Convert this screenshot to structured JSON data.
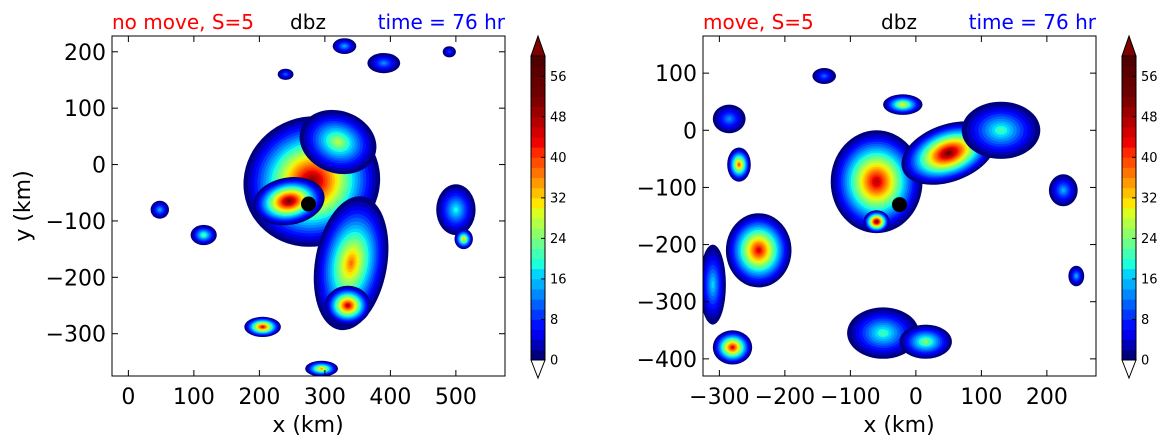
{
  "chart_data": [
    {
      "type": "heatmap",
      "title_left": "no move, S=5",
      "title_center": "dbz",
      "title_right": "time = 76 hr",
      "title_left_color": "#ff0000",
      "title_center_color": "#000000",
      "title_right_color": "#0000ff",
      "xlabel": "x (km)",
      "ylabel": "y (km)",
      "xlim": [
        -25,
        575
      ],
      "ylim": [
        -375,
        228
      ],
      "xticks": [
        0,
        100,
        200,
        300,
        400,
        500
      ],
      "xtick_labels": [
        "0",
        "100",
        "200",
        "300",
        "400",
        "500"
      ],
      "yticks": [
        200,
        100,
        0,
        -100,
        -200,
        -300
      ],
      "ytick_labels": [
        "200",
        "100",
        "0",
        "−100",
        "−200",
        "−300"
      ],
      "center_marker": {
        "x": 275,
        "y": -70
      },
      "cells": [
        {
          "x": 280,
          "y": -30,
          "rx": 105,
          "ry": 115,
          "rot": -20,
          "peak": 50
        },
        {
          "x": 245,
          "y": -65,
          "rx": 55,
          "ry": 42,
          "rot": -10,
          "peak": 52
        },
        {
          "x": 320,
          "y": 40,
          "rx": 60,
          "ry": 55,
          "rot": 20,
          "peak": 26
        },
        {
          "x": 340,
          "y": -175,
          "rx": 55,
          "ry": 120,
          "rot": 10,
          "peak": 36
        },
        {
          "x": 335,
          "y": -250,
          "rx": 35,
          "ry": 35,
          "rot": 0,
          "peak": 46
        },
        {
          "x": 205,
          "y": -288,
          "rx": 28,
          "ry": 18,
          "rot": 0,
          "peak": 44
        },
        {
          "x": 295,
          "y": -362,
          "rx": 25,
          "ry": 14,
          "rot": 0,
          "peak": 34
        },
        {
          "x": 115,
          "y": -125,
          "rx": 20,
          "ry": 18,
          "rot": 0,
          "peak": 22
        },
        {
          "x": 48,
          "y": -80,
          "rx": 14,
          "ry": 16,
          "rot": 0,
          "peak": 14
        },
        {
          "x": 500,
          "y": -80,
          "rx": 30,
          "ry": 45,
          "rot": 0,
          "peak": 18
        },
        {
          "x": 512,
          "y": -132,
          "rx": 14,
          "ry": 18,
          "rot": 0,
          "peak": 32
        },
        {
          "x": 390,
          "y": 180,
          "rx": 25,
          "ry": 18,
          "rot": 0,
          "peak": 12
        },
        {
          "x": 240,
          "y": 160,
          "rx": 12,
          "ry": 10,
          "rot": 0,
          "peak": 10
        },
        {
          "x": 490,
          "y": 200,
          "rx": 10,
          "ry": 10,
          "rot": 0,
          "peak": 8
        },
        {
          "x": 330,
          "y": 210,
          "rx": 18,
          "ry": 14,
          "rot": 0,
          "peak": 14
        }
      ]
    },
    {
      "type": "heatmap",
      "title_left": "move, S=5",
      "title_center": "dbz",
      "title_right": "time = 76 hr",
      "title_left_color": "#ff0000",
      "title_center_color": "#000000",
      "title_right_color": "#0000ff",
      "xlabel": "x (km)",
      "ylabel": "",
      "xlim": [
        -325,
        275
      ],
      "ylim": [
        -430,
        165
      ],
      "xticks": [
        -300,
        -200,
        -100,
        0,
        100,
        200
      ],
      "xtick_labels": [
        "−300",
        "−200",
        "−100",
        "0",
        "100",
        "200"
      ],
      "yticks": [
        100,
        0,
        -100,
        -200,
        -300,
        -400
      ],
      "ytick_labels": [
        "100",
        "0",
        "−100",
        "−200",
        "−300",
        "−400"
      ],
      "center_marker": {
        "x": -25,
        "y": -130
      },
      "cells": [
        {
          "x": -60,
          "y": -90,
          "rx": 70,
          "ry": 90,
          "rot": 0,
          "peak": 46
        },
        {
          "x": -60,
          "y": -160,
          "rx": 20,
          "ry": 20,
          "rot": 0,
          "peak": 52
        },
        {
          "x": 50,
          "y": -40,
          "rx": 75,
          "ry": 50,
          "rot": -20,
          "peak": 52
        },
        {
          "x": 130,
          "y": 0,
          "rx": 60,
          "ry": 50,
          "rot": 0,
          "peak": 20
        },
        {
          "x": -20,
          "y": 45,
          "rx": 30,
          "ry": 18,
          "rot": 0,
          "peak": 30
        },
        {
          "x": -240,
          "y": -210,
          "rx": 50,
          "ry": 65,
          "rot": 0,
          "peak": 44
        },
        {
          "x": -280,
          "y": -380,
          "rx": 30,
          "ry": 30,
          "rot": 0,
          "peak": 44
        },
        {
          "x": -270,
          "y": -60,
          "rx": 18,
          "ry": 30,
          "rot": 0,
          "peak": 38
        },
        {
          "x": -285,
          "y": 20,
          "rx": 25,
          "ry": 25,
          "rot": 0,
          "peak": 12
        },
        {
          "x": -310,
          "y": -270,
          "rx": 20,
          "ry": 70,
          "rot": 0,
          "peak": 16
        },
        {
          "x": -50,
          "y": -355,
          "rx": 55,
          "ry": 45,
          "rot": 0,
          "peak": 20
        },
        {
          "x": 15,
          "y": -370,
          "rx": 40,
          "ry": 30,
          "rot": 0,
          "peak": 24
        },
        {
          "x": 225,
          "y": -105,
          "rx": 22,
          "ry": 28,
          "rot": 0,
          "peak": 14
        },
        {
          "x": 245,
          "y": -255,
          "rx": 12,
          "ry": 18,
          "rot": 0,
          "peak": 14
        },
        {
          "x": -140,
          "y": 95,
          "rx": 18,
          "ry": 14,
          "rot": 0,
          "peak": 10
        }
      ]
    }
  ],
  "colorbar": {
    "min": 0,
    "max": 60,
    "step": 2,
    "ticks": [
      0,
      8,
      16,
      24,
      32,
      40,
      48,
      56
    ],
    "tick_labels": [
      "0",
      "8",
      "16",
      "24",
      "32",
      "40",
      "48",
      "56"
    ],
    "colors": [
      "#00007f",
      "#0000b5",
      "#0000ed",
      "#0010ff",
      "#0038ff",
      "#0060ff",
      "#0088ff",
      "#00b0ff",
      "#00d4ff",
      "#1cffdb",
      "#42ffb5",
      "#6aff8d",
      "#8eff69",
      "#b2ff45",
      "#d8ff1f",
      "#ffe600",
      "#ffc000",
      "#ff9a00",
      "#ff7400",
      "#ff4e00",
      "#ff2800",
      "#ed0400",
      "#d20000",
      "#b60000",
      "#9a0000",
      "#7f0000",
      "#6d0000",
      "#640000",
      "#5a0000",
      "#500000"
    ],
    "over_color": "#7f0000",
    "under_color": "#ffffff"
  }
}
